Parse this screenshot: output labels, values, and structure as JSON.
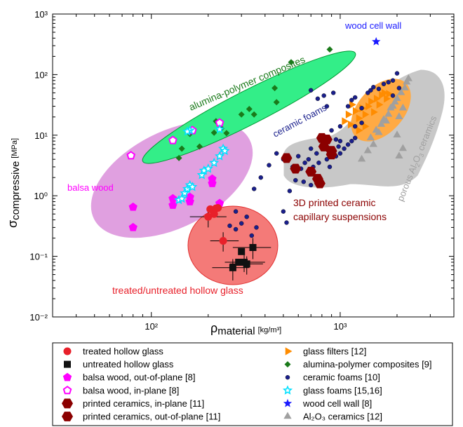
{
  "chart_data": {
    "type": "scatter",
    "x_scale": "log",
    "y_scale": "log",
    "xlim": [
      30,
      4000
    ],
    "ylim": [
      0.01,
      1000
    ],
    "x_ticks": [
      {
        "value": 100,
        "label": "10²"
      },
      {
        "value": 1000,
        "label": "10³"
      }
    ],
    "y_ticks": [
      {
        "value": 0.01,
        "label": "10⁻²"
      },
      {
        "value": 0.1,
        "label": "10⁻¹"
      },
      {
        "value": 1,
        "label": "10⁰"
      },
      {
        "value": 10,
        "label": "10¹"
      },
      {
        "value": 100,
        "label": "10²"
      },
      {
        "value": 1000,
        "label": "10³"
      }
    ],
    "xlabel": {
      "symbol": "ρ",
      "sub": "material",
      "unit": "[kg/m³]"
    },
    "ylabel": {
      "symbol": "σ",
      "sub": "compressive",
      "unit": "[MPa]"
    },
    "grid": false,
    "legend_position": "bottom",
    "region_labels": {
      "wood_cell_wall": "wood cell wall",
      "alumina_composites": "alumina-polymer composites",
      "ceramic_foams": "ceramic foams",
      "balsa_wood": "balsa wood",
      "printed_ceramics_line1": "3D printed ceramic",
      "printed_ceramics_line2": "capillary suspensions",
      "hollow_glass": "treated/untreated hollow glass",
      "porous_prefix": "porous Al",
      "porous_sub2": "2",
      "porous_mid": "O",
      "porous_sub3": "3",
      "porous_suffix": " ceramics"
    },
    "series": [
      {
        "key": "treated",
        "name": "treated hollow glass",
        "marker": "circle",
        "color": "#e8202a",
        "points": [
          [
            200,
            0.45
          ],
          [
            205,
            0.6
          ],
          [
            215,
            0.5
          ],
          [
            220,
            0.62
          ],
          [
            225,
            0.63
          ],
          [
            240,
            0.18
          ]
        ]
      },
      {
        "key": "untreated",
        "name": "untreated hollow glass",
        "marker": "square",
        "color": "#111111",
        "points": [
          [
            270,
            0.065
          ],
          [
            290,
            0.08
          ],
          [
            300,
            0.12
          ],
          [
            310,
            0.08
          ],
          [
            320,
            0.075
          ],
          [
            345,
            0.14
          ]
        ]
      },
      {
        "key": "balsa_oop",
        "name": "balsa wood, out-of-plane [8]",
        "marker": "pentagon",
        "color": "#ff00ff",
        "points": [
          [
            80,
            0.3
          ],
          [
            80,
            0.65
          ],
          [
            130,
            0.7
          ],
          [
            130,
            0.9
          ],
          [
            160,
            0.8
          ],
          [
            160,
            0.95
          ],
          [
            210,
            1.6
          ],
          [
            210,
            1.9
          ],
          [
            230,
            0.75
          ]
        ]
      },
      {
        "key": "balsa_ip",
        "name": "balsa wood, in-plane [8]",
        "marker": "pentagon-open",
        "color": "#ff00ff",
        "points": [
          [
            78,
            4.6
          ],
          [
            130,
            8.2
          ],
          [
            165,
            12
          ],
          [
            230,
            16
          ]
        ]
      },
      {
        "key": "printed_ip",
        "name": "printed ceramics, in-plane [11]",
        "marker": "hexagon",
        "color": "#8b0000",
        "points": [
          [
            800,
            9
          ],
          [
            850,
            8.5
          ],
          [
            820,
            6.5
          ],
          [
            900,
            5.5
          ],
          [
            700,
            2.5
          ]
        ]
      },
      {
        "key": "printed_oop",
        "name": "printed ceramics, out-of-plane [11]",
        "marker": "hexagon",
        "color": "#8b0000",
        "points": [
          [
            520,
            4.2
          ],
          [
            580,
            2.8
          ],
          [
            760,
            1.9
          ],
          [
            780,
            1.6
          ],
          [
            900,
            4.8
          ]
        ]
      },
      {
        "key": "glass_filters",
        "name": "glass filters [12]",
        "marker": "triangle-right",
        "color": "#ff8c00",
        "points": [
          [
            1050,
            17
          ],
          [
            1100,
            22
          ],
          [
            1130,
            15
          ],
          [
            1200,
            25
          ],
          [
            1250,
            19
          ],
          [
            1300,
            28
          ],
          [
            1350,
            22
          ],
          [
            1400,
            30
          ],
          [
            1450,
            36
          ],
          [
            1500,
            24
          ],
          [
            1550,
            40
          ],
          [
            1600,
            32
          ],
          [
            1650,
            46
          ],
          [
            1700,
            50
          ],
          [
            1750,
            40
          ],
          [
            1800,
            48
          ],
          [
            1150,
            32
          ],
          [
            1250,
            12
          ],
          [
            1350,
            14
          ]
        ]
      },
      {
        "key": "alumina",
        "name": "alumina-polymer composites [9]",
        "marker": "diamond",
        "color": "#1a7a1a",
        "points": [
          [
            140,
            4.2
          ],
          [
            145,
            6
          ],
          [
            160,
            10.5
          ],
          [
            180,
            6.5
          ],
          [
            215,
            11
          ],
          [
            220,
            17
          ],
          [
            235,
            13
          ],
          [
            250,
            10.8
          ],
          [
            300,
            22
          ],
          [
            330,
            27
          ],
          [
            350,
            22
          ],
          [
            450,
            60
          ],
          [
            550,
            160
          ],
          [
            880,
            260
          ],
          [
            460,
            35
          ]
        ]
      },
      {
        "key": "ceramic_foams",
        "name": "ceramic foams [10]",
        "marker": "dot",
        "color": "#1a1f8c",
        "points": [
          [
            260,
            0.32
          ],
          [
            280,
            0.28
          ],
          [
            300,
            0.35
          ],
          [
            320,
            0.45
          ],
          [
            340,
            0.22
          ],
          [
            360,
            0.3
          ],
          [
            280,
            0.55
          ],
          [
            350,
            1.3
          ],
          [
            380,
            2
          ],
          [
            420,
            3.2
          ],
          [
            460,
            5
          ],
          [
            500,
            4
          ],
          [
            560,
            3
          ],
          [
            600,
            4.5
          ],
          [
            620,
            2.8
          ],
          [
            650,
            3.5
          ],
          [
            680,
            4
          ],
          [
            700,
            6
          ],
          [
            720,
            3
          ],
          [
            750,
            5
          ],
          [
            770,
            3.5
          ],
          [
            800,
            6.5
          ],
          [
            850,
            4
          ],
          [
            880,
            3
          ],
          [
            950,
            4.5
          ],
          [
            1000,
            5
          ],
          [
            1050,
            6
          ],
          [
            1100,
            7
          ],
          [
            1150,
            8
          ],
          [
            1200,
            9
          ],
          [
            1000,
            8
          ],
          [
            950,
            8.5
          ],
          [
            980,
            6.5
          ],
          [
            500,
            0.55
          ],
          [
            520,
            0.36
          ],
          [
            540,
            1.2
          ],
          [
            580,
            1.8
          ],
          [
            700,
            1.5
          ],
          [
            640,
            1.7
          ],
          [
            900,
            12
          ],
          [
            1000,
            14
          ],
          [
            1100,
            30
          ],
          [
            1150,
            38
          ],
          [
            1200,
            42
          ],
          [
            1300,
            28
          ],
          [
            1400,
            50
          ],
          [
            1450,
            55
          ],
          [
            1500,
            62
          ],
          [
            1600,
            58
          ],
          [
            1700,
            70
          ],
          [
            1800,
            75
          ],
          [
            1900,
            80
          ],
          [
            2000,
            105
          ],
          [
            2050,
            60
          ],
          [
            1900,
            45
          ],
          [
            850,
            30
          ],
          [
            700,
            55
          ],
          [
            1200,
            14
          ],
          [
            1300,
            16
          ],
          [
            820,
            45
          ],
          [
            760,
            40
          ],
          [
            920,
            50
          ]
        ]
      },
      {
        "key": "glass_foams",
        "name": "glass foams [15,16]",
        "marker": "star-open",
        "color": "#00e0ff",
        "points": [
          [
            140,
            0.85
          ],
          [
            145,
            0.9
          ],
          [
            150,
            1.1
          ],
          [
            155,
            1.3
          ],
          [
            160,
            1.5
          ],
          [
            165,
            1.4
          ],
          [
            185,
            2.2
          ],
          [
            190,
            2.6
          ],
          [
            200,
            2.8
          ],
          [
            215,
            3.5
          ],
          [
            230,
            4.5
          ],
          [
            240,
            6
          ],
          [
            245,
            5.5
          ],
          [
            160,
            12
          ],
          [
            230,
            12.5
          ],
          [
            155,
            11.5
          ]
        ]
      },
      {
        "key": "wood_cell_wall",
        "name": "wood cell wall [8]",
        "marker": "star",
        "color": "#1a1aff",
        "points": [
          [
            1550,
            350
          ]
        ]
      },
      {
        "key": "al2o3",
        "name": "Al₂O₃ ceramics [12]",
        "marker": "triangle-up",
        "color": "#a0a0a0",
        "points": [
          [
            1300,
            4
          ],
          [
            1400,
            5.5
          ],
          [
            1450,
            9
          ],
          [
            1500,
            7
          ],
          [
            1550,
            12
          ],
          [
            1600,
            11
          ],
          [
            1650,
            15
          ],
          [
            1700,
            18
          ],
          [
            1750,
            17
          ],
          [
            1800,
            22
          ],
          [
            1850,
            28
          ],
          [
            1900,
            30
          ],
          [
            1950,
            35
          ],
          [
            2000,
            40
          ],
          [
            2050,
            20
          ],
          [
            2100,
            50
          ],
          [
            2150,
            28
          ],
          [
            2200,
            60
          ],
          [
            2250,
            75
          ],
          [
            2300,
            85
          ],
          [
            2050,
            4.5
          ],
          [
            2150,
            6
          ],
          [
            2000,
            10
          ]
        ]
      }
    ],
    "error_bars": [
      {
        "x": 200,
        "y": 0.45,
        "xerr": [
          160,
          250
        ],
        "yerr": [
          0.3,
          0.6
        ]
      },
      {
        "x": 240,
        "y": 0.18,
        "xerr": [
          205,
          290
        ],
        "yerr": [
          0.12,
          0.25
        ]
      },
      {
        "x": 270,
        "y": 0.065,
        "xerr": [
          210,
          330
        ],
        "yerr": [
          0.04,
          0.09
        ]
      },
      {
        "x": 310,
        "y": 0.08,
        "xerr": [
          245,
          400
        ],
        "yerr": [
          0.055,
          0.11
        ]
      },
      {
        "x": 345,
        "y": 0.14,
        "xerr": [
          270,
          430
        ],
        "yerr": [
          0.09,
          0.2
        ]
      },
      {
        "x": 320,
        "y": 0.075,
        "xerr": [
          260,
          390
        ],
        "yerr": [
          0.05,
          0.1
        ]
      }
    ],
    "legend_left": [
      "treated",
      "untreated",
      "balsa_oop",
      "balsa_ip",
      "printed_ip",
      "printed_oop"
    ],
    "legend_right": [
      "glass_filters",
      "alumina",
      "ceramic_foams",
      "glass_foams",
      "wood_cell_wall",
      "al2o3"
    ]
  }
}
